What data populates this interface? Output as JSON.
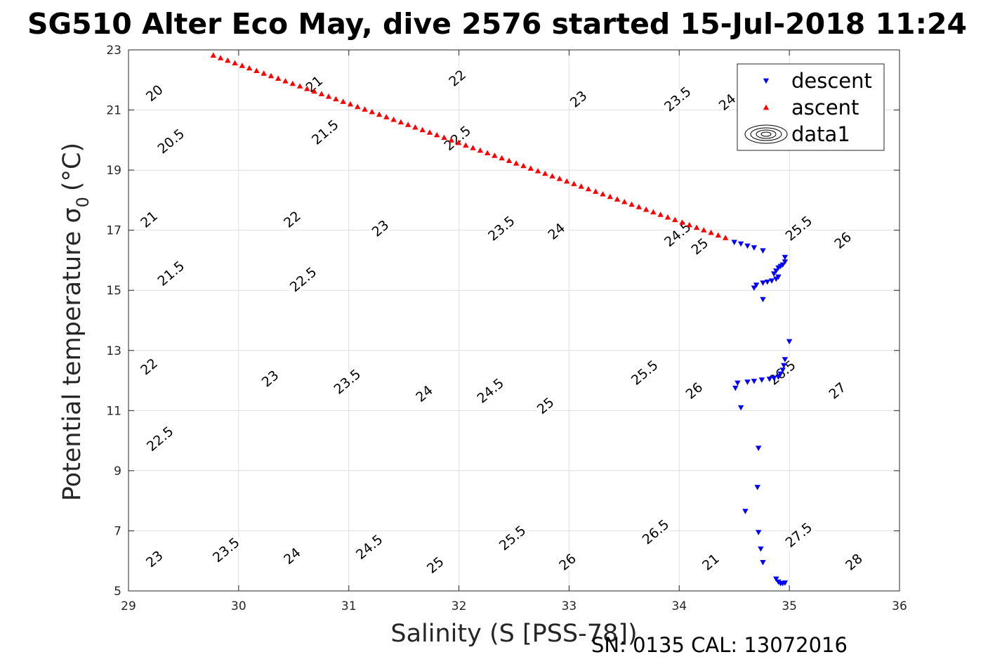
{
  "chart_data": {
    "type": "scatter",
    "title": "SG510 Alter Eco May, dive 2576 started 15-Jul-2018 11:24",
    "xlabel": "Salinity (S [PSS-78])",
    "ylabel": "Potential temperature σ",
    "ylabel_subscript": "0",
    "ylabel_unit": "(°C)",
    "footnote": "SN: 0135  CAL: 13072016",
    "xlim": [
      29,
      36
    ],
    "ylim": [
      5,
      23
    ],
    "xticks": [
      "29",
      "30",
      "31",
      "32",
      "33",
      "34",
      "35",
      "36"
    ],
    "yticks": [
      "5",
      "7",
      "9",
      "11",
      "13",
      "15",
      "17",
      "19",
      "21",
      "23"
    ],
    "grid": true,
    "legend_position": "top-right",
    "legend": [
      "descent",
      "ascent",
      "data1"
    ],
    "series": [
      {
        "name": "descent",
        "marker": "triangle-down",
        "color": "#0000ff",
        "points": [
          [
            34.5,
            16.6
          ],
          [
            34.56,
            16.55
          ],
          [
            34.62,
            16.48
          ],
          [
            34.68,
            16.42
          ],
          [
            34.76,
            16.32
          ],
          [
            34.96,
            16.1
          ],
          [
            34.96,
            15.95
          ],
          [
            34.94,
            15.85
          ],
          [
            34.92,
            15.8
          ],
          [
            34.9,
            15.75
          ],
          [
            34.88,
            15.65
          ],
          [
            34.86,
            15.55
          ],
          [
            34.9,
            15.45
          ],
          [
            34.88,
            15.38
          ],
          [
            34.84,
            15.32
          ],
          [
            34.8,
            15.28
          ],
          [
            34.76,
            15.25
          ],
          [
            34.7,
            15.18
          ],
          [
            34.68,
            15.08
          ],
          [
            34.76,
            14.7
          ],
          [
            35.0,
            13.3
          ],
          [
            34.96,
            12.7
          ],
          [
            34.95,
            12.5
          ],
          [
            34.94,
            12.35
          ],
          [
            34.92,
            12.22
          ],
          [
            34.9,
            12.12
          ],
          [
            34.86,
            12.08
          ],
          [
            34.82,
            12.05
          ],
          [
            34.75,
            12.02
          ],
          [
            34.68,
            11.98
          ],
          [
            34.62,
            11.95
          ],
          [
            34.53,
            11.92
          ],
          [
            34.51,
            11.75
          ],
          [
            34.56,
            11.1
          ],
          [
            34.72,
            9.75
          ],
          [
            34.71,
            8.45
          ],
          [
            34.6,
            7.65
          ],
          [
            34.72,
            6.95
          ],
          [
            34.74,
            6.4
          ],
          [
            34.76,
            5.95
          ],
          [
            34.88,
            5.4
          ],
          [
            34.9,
            5.3
          ],
          [
            34.92,
            5.25
          ],
          [
            34.94,
            5.25
          ],
          [
            34.96,
            5.27
          ]
        ]
      },
      {
        "name": "ascent",
        "marker": "triangle-up",
        "color": "#ff0000",
        "start": [
          29.77,
          22.82
        ],
        "end": [
          34.42,
          16.75
        ],
        "count": 72
      }
    ],
    "contours": {
      "levels": [
        "20",
        "20.5",
        "21",
        "21.5",
        "22",
        "22.5",
        "23",
        "23.5",
        "24",
        "24.5",
        "25",
        "25.5",
        "26",
        "26.5",
        "27",
        "27.5",
        "28"
      ],
      "labels": [
        {
          "text": "20",
          "x": 29.25,
          "y": 21.5
        },
        {
          "text": "20.5",
          "x": 29.4,
          "y": 19.9
        },
        {
          "text": "21",
          "x": 29.2,
          "y": 17.3
        },
        {
          "text": "21.5",
          "x": 29.4,
          "y": 15.5
        },
        {
          "text": "22",
          "x": 29.2,
          "y": 12.4
        },
        {
          "text": "22.5",
          "x": 29.3,
          "y": 10.0
        },
        {
          "text": "23",
          "x": 29.25,
          "y": 6.0
        },
        {
          "text": "21",
          "x": 30.7,
          "y": 21.8
        },
        {
          "text": "21.5",
          "x": 30.8,
          "y": 20.2
        },
        {
          "text": "22",
          "x": 30.5,
          "y": 17.3
        },
        {
          "text": "22.5",
          "x": 30.6,
          "y": 15.3
        },
        {
          "text": "23",
          "x": 30.3,
          "y": 12.0
        },
        {
          "text": "23.5",
          "x": 29.9,
          "y": 6.3
        },
        {
          "text": "22",
          "x": 32.0,
          "y": 22.0
        },
        {
          "text": "22.5",
          "x": 32.0,
          "y": 20.0
        },
        {
          "text": "23",
          "x": 31.3,
          "y": 17.0
        },
        {
          "text": "23.5",
          "x": 31.0,
          "y": 11.9
        },
        {
          "text": "24",
          "x": 30.5,
          "y": 6.1
        },
        {
          "text": "23",
          "x": 33.1,
          "y": 21.3
        },
        {
          "text": "23.5",
          "x": 32.4,
          "y": 17.0
        },
        {
          "text": "24",
          "x": 31.7,
          "y": 11.5
        },
        {
          "text": "24.5",
          "x": 31.2,
          "y": 6.4
        },
        {
          "text": "23.5",
          "x": 34.0,
          "y": 21.3
        },
        {
          "text": "24",
          "x": 32.9,
          "y": 16.9
        },
        {
          "text": "24.5",
          "x": 32.3,
          "y": 11.6
        },
        {
          "text": "25",
          "x": 31.8,
          "y": 5.8
        },
        {
          "text": "24",
          "x": 34.45,
          "y": 21.2
        },
        {
          "text": "24.5",
          "x": 34.0,
          "y": 16.8
        },
        {
          "text": "25",
          "x": 32.8,
          "y": 11.1
        },
        {
          "text": "25.5",
          "x": 32.5,
          "y": 6.7
        },
        {
          "text": "25",
          "x": 34.2,
          "y": 16.4
        },
        {
          "text": "25.5",
          "x": 33.7,
          "y": 12.2
        },
        {
          "text": "26",
          "x": 33.0,
          "y": 5.9
        },
        {
          "text": "25.5",
          "x": 35.1,
          "y": 17.0
        },
        {
          "text": "26",
          "x": 34.15,
          "y": 11.6
        },
        {
          "text": "26.5",
          "x": 33.8,
          "y": 6.9
        },
        {
          "text": "26",
          "x": 35.5,
          "y": 16.6
        },
        {
          "text": "26.5",
          "x": 34.95,
          "y": 12.2
        },
        {
          "text": "21",
          "x": 34.3,
          "y": 5.9
        },
        {
          "text": "27",
          "x": 35.45,
          "y": 11.6
        },
        {
          "text": "27.5",
          "x": 35.1,
          "y": 6.8
        },
        {
          "text": "28",
          "x": 35.6,
          "y": 5.9
        }
      ]
    }
  },
  "colors": {
    "descent": "#0000ff",
    "ascent": "#ff0000",
    "contour": "#000000",
    "grid": "#dfdfdf",
    "axis": "#262626"
  }
}
